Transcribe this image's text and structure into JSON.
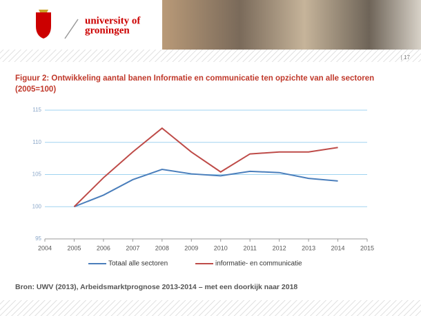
{
  "header": {
    "logo_lines": [
      "university of",
      "groningen"
    ]
  },
  "page_number": "| 17",
  "source": "Bron: UWV (2013), Arbeidsmarktprognose 2013-2014 – met een doorkijk naar 2018",
  "chart_data": {
    "type": "line",
    "title": "Figuur 2: Ontwikkeling aantal banen Informatie en communicatie ten opzichte van alle sectoren (2005=100)",
    "x": [
      2005,
      2006,
      2007,
      2008,
      2009,
      2010,
      2011,
      2012,
      2013,
      2014
    ],
    "series": [
      {
        "name": "Totaal alle sectoren",
        "color": "#4a7ebb",
        "values": [
          100,
          101.8,
          104.2,
          105.8,
          105.1,
          104.8,
          105.5,
          105.3,
          104.4,
          104.0
        ]
      },
      {
        "name": "informatie- en communicatie",
        "color": "#be4b48",
        "values": [
          100,
          104.5,
          108.5,
          112.2,
          108.5,
          105.4,
          108.2,
          108.5,
          108.5,
          109.2
        ]
      }
    ],
    "xlim": [
      2004,
      2015
    ],
    "xticks": [
      2004,
      2005,
      2006,
      2007,
      2008,
      2009,
      2010,
      2011,
      2012,
      2013,
      2014,
      2015
    ],
    "ylim": [
      95,
      115
    ],
    "yticks": [
      95,
      100,
      105,
      110,
      115
    ],
    "grid": true,
    "grid_color": "#9fd3f0",
    "legend": "bottom"
  }
}
